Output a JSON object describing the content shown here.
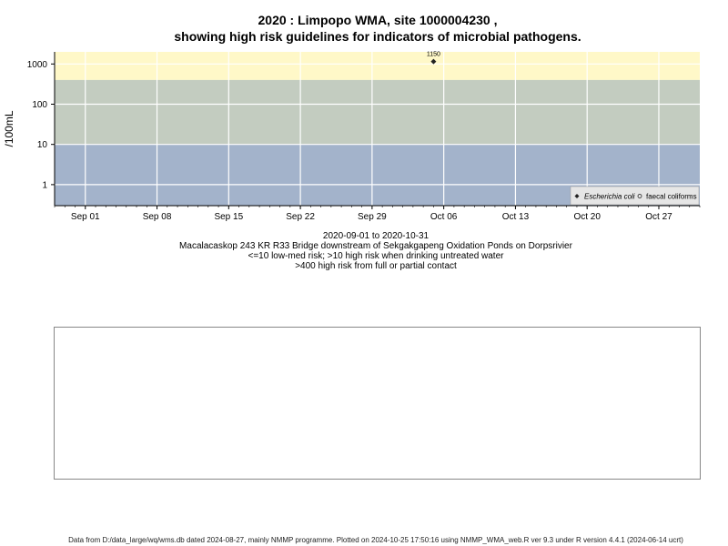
{
  "title_line1": "2020 : Limpopo WMA, site 1000004230 ,",
  "title_line2": "showing high risk guidelines for indicators of microbial pathogens.",
  "captions": {
    "date_range": "2020-09-01 to 2020-10-31",
    "site": "Macalacaskop 243 KR R33 Bridge downstream of Sekgakgapeng Oxidation Ponds on Dorpsrivier",
    "guideline1": "<=10 low-med risk; >10 high risk when drinking untreated water",
    "guideline2": ">400 high risk from full or partial contact"
  },
  "footer": "Data from D:/data_large/wq/wms.db dated 2024-08-27, mainly NMMP programme. Plotted on 2024-10-25 17:50:16 using NMMP_WMA_web.R ver 9.3 under R version 4.4.1 (2024-06-14 ucrt)",
  "colors": {
    "band_high_contact": "#fff8c8",
    "band_drinking": "#c3ccc0",
    "band_low": "#a3b3cb",
    "grid": "#ffffff",
    "marker": "#222222"
  },
  "chart_data": {
    "type": "scatter",
    "ylabel": "/100mL",
    "yscale": "log",
    "xlim": [
      "2020-08-29",
      "2020-10-31"
    ],
    "ylim": [
      0.3,
      2000
    ],
    "y_ticks": [
      1,
      10,
      100,
      1000
    ],
    "y_tick_labels": [
      "1",
      "10",
      "100",
      "1000"
    ],
    "x_ticks": [
      "2020-09-01",
      "2020-09-08",
      "2020-09-15",
      "2020-09-22",
      "2020-09-29",
      "2020-10-06",
      "2020-10-13",
      "2020-10-20",
      "2020-10-27"
    ],
    "x_tick_labels": [
      "Sep 01",
      "Sep 08",
      "Sep 15",
      "Sep 22",
      "Sep 29",
      "Oct 06",
      "Oct 13",
      "Oct 20",
      "Oct 27"
    ],
    "bands": [
      {
        "from": 400,
        "to": 2000,
        "color": "#fff8c8"
      },
      {
        "from": 10,
        "to": 400,
        "color": "#c3ccc0"
      },
      {
        "from": 0.3,
        "to": 10,
        "color": "#a3b3cb"
      }
    ],
    "grid": true,
    "legend_position": "bottom-right",
    "series": [
      {
        "name": "Escherichia coli",
        "marker": "filled-diamond",
        "points": [
          {
            "x": "2020-10-05",
            "y": 1150,
            "label": "1150"
          }
        ]
      },
      {
        "name": "faecal coliforms",
        "marker": "open-circle",
        "points": []
      }
    ]
  }
}
